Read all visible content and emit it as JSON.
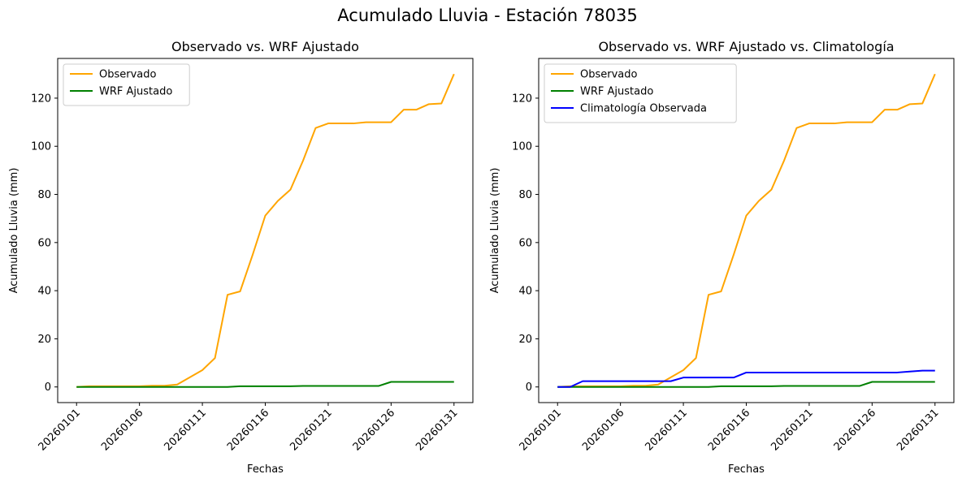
{
  "suptitle": "Acumulado Lluvia - Estación 78035",
  "chart_data": [
    {
      "type": "line",
      "title": "Observado vs. WRF Ajustado",
      "xlabel": "Fechas",
      "ylabel": "Acumulado Lluvia (mm)",
      "x": [
        "20260101",
        "20260102",
        "20260103",
        "20260104",
        "20260105",
        "20260106",
        "20260107",
        "20260108",
        "20260109",
        "20260110",
        "20260111",
        "20260112",
        "20260113",
        "20260114",
        "20260115",
        "20260116",
        "20260117",
        "20260118",
        "20260119",
        "20260120",
        "20260121",
        "20260122",
        "20260123",
        "20260124",
        "20260125",
        "20260126",
        "20260127",
        "20260128",
        "20260129",
        "20260130",
        "20260131"
      ],
      "xticks": [
        "20260101",
        "20260106",
        "20260111",
        "20260116",
        "20260121",
        "20260126",
        "20260131"
      ],
      "yticks": [
        0,
        20,
        40,
        60,
        80,
        100,
        120
      ],
      "ylim": [
        -6.5,
        136.5
      ],
      "legend_position": "upper-left",
      "grid": false,
      "series": [
        {
          "name": "Observado",
          "color": "#ffa500",
          "values": [
            0.0,
            0.3,
            0.3,
            0.3,
            0.3,
            0.3,
            0.5,
            0.5,
            1.0,
            4.0,
            7.0,
            12.0,
            38.3,
            39.7,
            55.0,
            71.2,
            77.3,
            82.0,
            94.0,
            107.6,
            109.5,
            109.5,
            109.5,
            110.0,
            110.0,
            110.0,
            115.2,
            115.2,
            117.5,
            117.8,
            130.0
          ]
        },
        {
          "name": "WRF Ajustado",
          "color": "#008000",
          "values": [
            0.0,
            0.0,
            0.0,
            0.0,
            0.0,
            0.0,
            0.0,
            0.0,
            0.0,
            0.0,
            0.0,
            0.0,
            0.0,
            0.3,
            0.3,
            0.3,
            0.3,
            0.3,
            0.4,
            0.4,
            0.4,
            0.4,
            0.4,
            0.4,
            0.4,
            2.1,
            2.1,
            2.1,
            2.1,
            2.1,
            2.1
          ]
        }
      ]
    },
    {
      "type": "line",
      "title": "Observado vs. WRF Ajustado vs. Climatología",
      "xlabel": "Fechas",
      "ylabel": "Acumulado Lluvia (mm)",
      "x": [
        "20260101",
        "20260102",
        "20260103",
        "20260104",
        "20260105",
        "20260106",
        "20260107",
        "20260108",
        "20260109",
        "20260110",
        "20260111",
        "20260112",
        "20260113",
        "20260114",
        "20260115",
        "20260116",
        "20260117",
        "20260118",
        "20260119",
        "20260120",
        "20260121",
        "20260122",
        "20260123",
        "20260124",
        "20260125",
        "20260126",
        "20260127",
        "20260128",
        "20260129",
        "20260130",
        "20260131"
      ],
      "xticks": [
        "20260101",
        "20260106",
        "20260111",
        "20260116",
        "20260121",
        "20260126",
        "20260131"
      ],
      "yticks": [
        0,
        20,
        40,
        60,
        80,
        100,
        120
      ],
      "ylim": [
        -6.5,
        136.5
      ],
      "legend_position": "upper-left",
      "grid": false,
      "series": [
        {
          "name": "Observado",
          "color": "#ffa500",
          "values": [
            0.0,
            0.3,
            0.3,
            0.3,
            0.3,
            0.3,
            0.5,
            0.5,
            1.0,
            4.0,
            7.0,
            12.0,
            38.3,
            39.7,
            55.0,
            71.2,
            77.3,
            82.0,
            94.0,
            107.6,
            109.5,
            109.5,
            109.5,
            110.0,
            110.0,
            110.0,
            115.2,
            115.2,
            117.5,
            117.8,
            130.0
          ]
        },
        {
          "name": "WRF Ajustado",
          "color": "#008000",
          "values": [
            0.0,
            0.0,
            0.0,
            0.0,
            0.0,
            0.0,
            0.0,
            0.0,
            0.0,
            0.0,
            0.0,
            0.0,
            0.0,
            0.3,
            0.3,
            0.3,
            0.3,
            0.3,
            0.4,
            0.4,
            0.4,
            0.4,
            0.4,
            0.4,
            0.4,
            2.1,
            2.1,
            2.1,
            2.1,
            2.1,
            2.1
          ]
        },
        {
          "name": "Climatología Observada",
          "color": "#0000ff",
          "values": [
            0.0,
            0.0,
            2.4,
            2.4,
            2.4,
            2.4,
            2.4,
            2.4,
            2.4,
            2.4,
            3.9,
            3.9,
            3.9,
            3.9,
            3.9,
            6.0,
            6.0,
            6.0,
            6.0,
            6.0,
            6.0,
            6.0,
            6.0,
            6.0,
            6.0,
            6.0,
            6.0,
            6.0,
            6.4,
            6.8,
            6.8
          ]
        }
      ]
    }
  ]
}
